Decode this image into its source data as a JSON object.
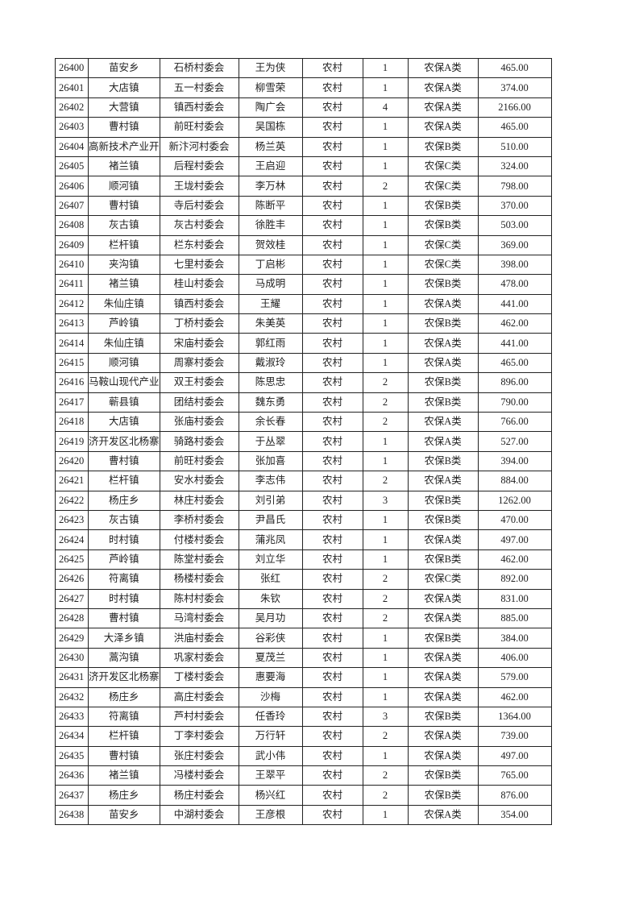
{
  "rows": [
    [
      "26400",
      "苗安乡",
      "石桥村委会",
      "王为侠",
      "农村",
      "1",
      "农保A类",
      "465.00"
    ],
    [
      "26401",
      "大店镇",
      "五一村委会",
      "柳雪荣",
      "农村",
      "1",
      "农保A类",
      "374.00"
    ],
    [
      "26402",
      "大营镇",
      "镇西村委会",
      "陶广会",
      "农村",
      "4",
      "农保A类",
      "2166.00"
    ],
    [
      "26403",
      "曹村镇",
      "前旺村委会",
      "吴国栋",
      "农村",
      "1",
      "农保A类",
      "465.00"
    ],
    [
      "26404",
      "高新技术产业开",
      "新汴河村委会",
      "杨兰英",
      "农村",
      "1",
      "农保B类",
      "510.00"
    ],
    [
      "26405",
      "褚兰镇",
      "后程村委会",
      "王启迎",
      "农村",
      "1",
      "农保C类",
      "324.00"
    ],
    [
      "26406",
      "顺河镇",
      "王垅村委会",
      "李万林",
      "农村",
      "2",
      "农保C类",
      "798.00"
    ],
    [
      "26407",
      "曹村镇",
      "寺后村委会",
      "陈断平",
      "农村",
      "1",
      "农保B类",
      "370.00"
    ],
    [
      "26408",
      "灰古镇",
      "灰古村委会",
      "徐胜丰",
      "农村",
      "1",
      "农保B类",
      "503.00"
    ],
    [
      "26409",
      "栏杆镇",
      "栏东村委会",
      "贺效桂",
      "农村",
      "1",
      "农保C类",
      "369.00"
    ],
    [
      "26410",
      "夹沟镇",
      "七里村委会",
      "丁启彬",
      "农村",
      "1",
      "农保C类",
      "398.00"
    ],
    [
      "26411",
      "褚兰镇",
      "桂山村委会",
      "马成明",
      "农村",
      "1",
      "农保B类",
      "478.00"
    ],
    [
      "26412",
      "朱仙庄镇",
      "镇西村委会",
      "王耀",
      "农村",
      "1",
      "农保A类",
      "441.00"
    ],
    [
      "26413",
      "芦岭镇",
      "丁桥村委会",
      "朱美英",
      "农村",
      "1",
      "农保B类",
      "462.00"
    ],
    [
      "26414",
      "朱仙庄镇",
      "宋庙村委会",
      "郭红雨",
      "农村",
      "1",
      "农保A类",
      "441.00"
    ],
    [
      "26415",
      "顺河镇",
      "周寨村委会",
      "戴淑玲",
      "农村",
      "1",
      "农保A类",
      "465.00"
    ],
    [
      "26416",
      "马鞍山现代产业",
      "双王村委会",
      "陈思忠",
      "农村",
      "2",
      "农保B类",
      "896.00"
    ],
    [
      "26417",
      "蕲县镇",
      "团结村委会",
      "魏东勇",
      "农村",
      "2",
      "农保B类",
      "790.00"
    ],
    [
      "26418",
      "大店镇",
      "张庙村委会",
      "余长春",
      "农村",
      "2",
      "农保A类",
      "766.00"
    ],
    [
      "26419",
      "济开发区北杨寨",
      "骑路村委会",
      "于丛翠",
      "农村",
      "1",
      "农保A类",
      "527.00"
    ],
    [
      "26420",
      "曹村镇",
      "前旺村委会",
      "张加喜",
      "农村",
      "1",
      "农保B类",
      "394.00"
    ],
    [
      "26421",
      "栏杆镇",
      "安水村委会",
      "李志伟",
      "农村",
      "2",
      "农保A类",
      "884.00"
    ],
    [
      "26422",
      "杨庄乡",
      "林庄村委会",
      "刘引弟",
      "农村",
      "3",
      "农保B类",
      "1262.00"
    ],
    [
      "26423",
      "灰古镇",
      "李桥村委会",
      "尹昌氏",
      "农村",
      "1",
      "农保B类",
      "470.00"
    ],
    [
      "26424",
      "时村镇",
      "付楼村委会",
      "蒲兆凤",
      "农村",
      "1",
      "农保A类",
      "497.00"
    ],
    [
      "26425",
      "芦岭镇",
      "陈堂村委会",
      "刘立华",
      "农村",
      "1",
      "农保B类",
      "462.00"
    ],
    [
      "26426",
      "符离镇",
      "杨楼村委会",
      "张红",
      "农村",
      "2",
      "农保C类",
      "892.00"
    ],
    [
      "26427",
      "时村镇",
      "陈村村委会",
      "朱钦",
      "农村",
      "2",
      "农保A类",
      "831.00"
    ],
    [
      "26428",
      "曹村镇",
      "马湾村委会",
      "吴月功",
      "农村",
      "2",
      "农保A类",
      "885.00"
    ],
    [
      "26429",
      "大泽乡镇",
      "洪庙村委会",
      "谷彩侠",
      "农村",
      "1",
      "农保B类",
      "384.00"
    ],
    [
      "26430",
      "蒿沟镇",
      "巩家村委会",
      "夏茂兰",
      "农村",
      "1",
      "农保A类",
      "406.00"
    ],
    [
      "26431",
      "济开发区北杨寨",
      "丁楼村委会",
      "惠要海",
      "农村",
      "1",
      "农保A类",
      "579.00"
    ],
    [
      "26432",
      "杨庄乡",
      "高庄村委会",
      "沙梅",
      "农村",
      "1",
      "农保A类",
      "462.00"
    ],
    [
      "26433",
      "符离镇",
      "芦村村委会",
      "任香玲",
      "农村",
      "3",
      "农保B类",
      "1364.00"
    ],
    [
      "26434",
      "栏杆镇",
      "丁李村委会",
      "万行轩",
      "农村",
      "2",
      "农保A类",
      "739.00"
    ],
    [
      "26435",
      "曹村镇",
      "张庄村委会",
      "武小伟",
      "农村",
      "1",
      "农保A类",
      "497.00"
    ],
    [
      "26436",
      "褚兰镇",
      "冯楼村委会",
      "王翠平",
      "农村",
      "2",
      "农保B类",
      "765.00"
    ],
    [
      "26437",
      "杨庄乡",
      "杨庄村委会",
      "杨兴红",
      "农村",
      "2",
      "农保B类",
      "876.00"
    ],
    [
      "26438",
      "苗安乡",
      "中湖村委会",
      "王彦根",
      "农村",
      "1",
      "农保A类",
      "354.00"
    ]
  ]
}
